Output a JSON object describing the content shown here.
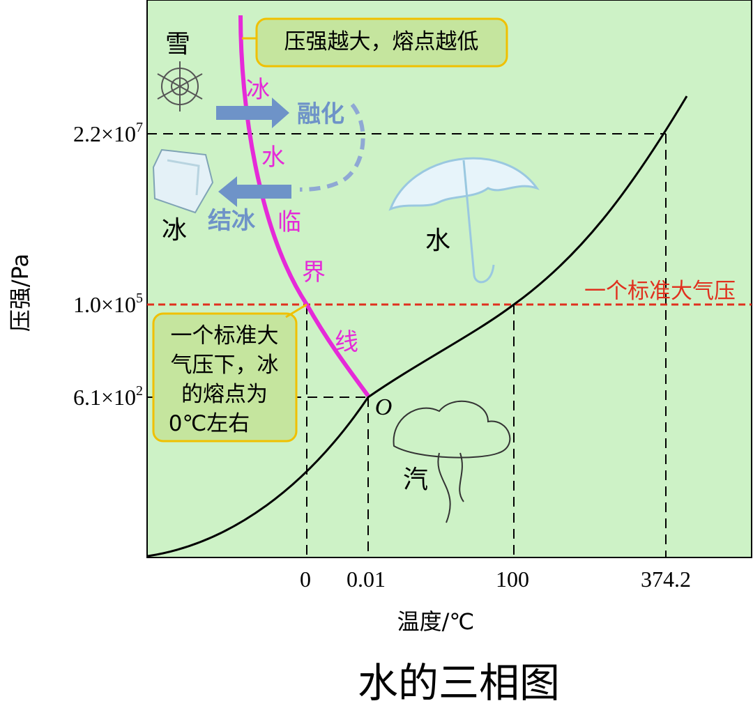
{
  "title": "水的三相图",
  "axes": {
    "x_label": "温度/℃",
    "y_label": "压强/Pa",
    "x_ticks": [
      "0",
      "0.01",
      "100",
      "374.2"
    ],
    "y_ticks": [
      {
        "mantissa": "2.2×10",
        "exponent": "7"
      },
      {
        "mantissa": "1.0×10",
        "exponent": "5"
      },
      {
        "mantissa": "6.1×10",
        "exponent": "2"
      }
    ]
  },
  "annotations": {
    "pressure_note": "压强越大，熔点越低",
    "standard_pressure": "一个标准大气压",
    "melting_note": [
      "一个标准大",
      "气压下，冰",
      "的熔点为",
      "0℃左右"
    ],
    "triple_point": "O",
    "melting_curve": [
      "冰",
      "水",
      "临",
      "界",
      "线"
    ],
    "melt": "融化",
    "freeze": "结冰"
  },
  "regions": {
    "snow": "雪",
    "ice": "冰",
    "water": "水",
    "vapor": "汽"
  }
}
